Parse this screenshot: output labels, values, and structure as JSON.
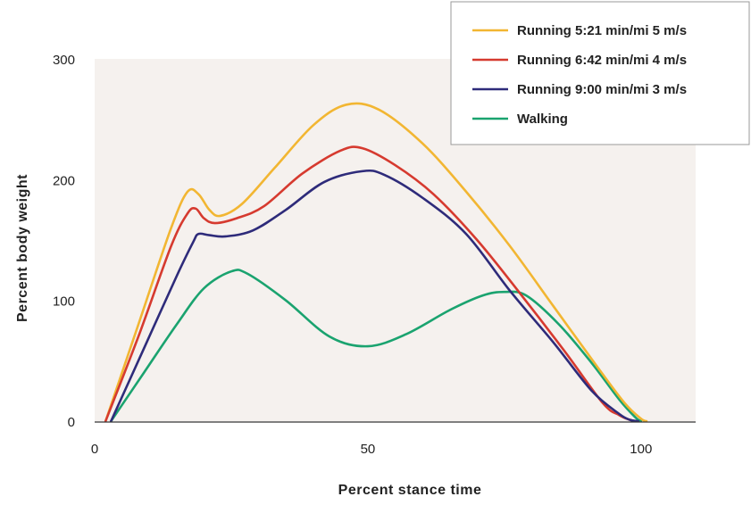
{
  "chart_data": {
    "type": "line",
    "xlabel": "Percent stance time",
    "ylabel": "Percent body weight",
    "xlim": [
      0,
      110
    ],
    "ylim": [
      0,
      300
    ],
    "xticks": [
      0,
      50,
      100
    ],
    "yticks": [
      0,
      100,
      200,
      300
    ],
    "grid": false,
    "legend_position": "top-right",
    "background_color": "#f5f1ee",
    "series": [
      {
        "name": "Running 5:21 min/mi 5 m/s",
        "color": "#f2b632",
        "x": [
          2,
          8,
          14,
          17,
          19,
          21,
          23,
          27,
          33,
          40,
          46,
          52,
          60,
          68,
          76,
          84,
          92,
          97,
          100,
          101
        ],
        "y": [
          0,
          80,
          160,
          190,
          188,
          175,
          170,
          180,
          210,
          245,
          262,
          258,
          230,
          190,
          145,
          95,
          45,
          15,
          2,
          0
        ]
      },
      {
        "name": "Running 6:42 min/mi 4 m/s",
        "color": "#d63a2f",
        "x": [
          2,
          8,
          14,
          17,
          18.5,
          20,
          22,
          26,
          31,
          38,
          45,
          49,
          55,
          62,
          70,
          78,
          86,
          93,
          96,
          98,
          99
        ],
        "y": [
          0,
          70,
          145,
          172,
          176,
          168,
          164,
          168,
          178,
          205,
          224,
          226,
          212,
          188,
          150,
          105,
          58,
          15,
          5,
          1,
          0
        ]
      },
      {
        "name": "Running 9:00 min/mi 3 m/s",
        "color": "#2e2b7a",
        "x": [
          3,
          9,
          15,
          18,
          19,
          21,
          24,
          29,
          35,
          42,
          49,
          53,
          60,
          68,
          76,
          84,
          91,
          96,
          98,
          99.5
        ],
        "y": [
          0,
          60,
          120,
          148,
          155,
          154,
          153,
          158,
          175,
          198,
          207,
          204,
          185,
          155,
          108,
          65,
          25,
          6,
          1,
          0
        ]
      },
      {
        "name": "Walking",
        "color": "#1aa36f",
        "x": [
          3,
          9,
          15,
          20,
          25,
          28,
          35,
          43,
          50,
          57,
          65,
          71,
          75,
          79,
          85,
          91,
          96,
          99,
          100
        ],
        "y": [
          0,
          40,
          80,
          110,
          124,
          122,
          100,
          70,
          62,
          72,
          92,
          104,
          107,
          104,
          80,
          48,
          18,
          3,
          0
        ]
      }
    ]
  }
}
